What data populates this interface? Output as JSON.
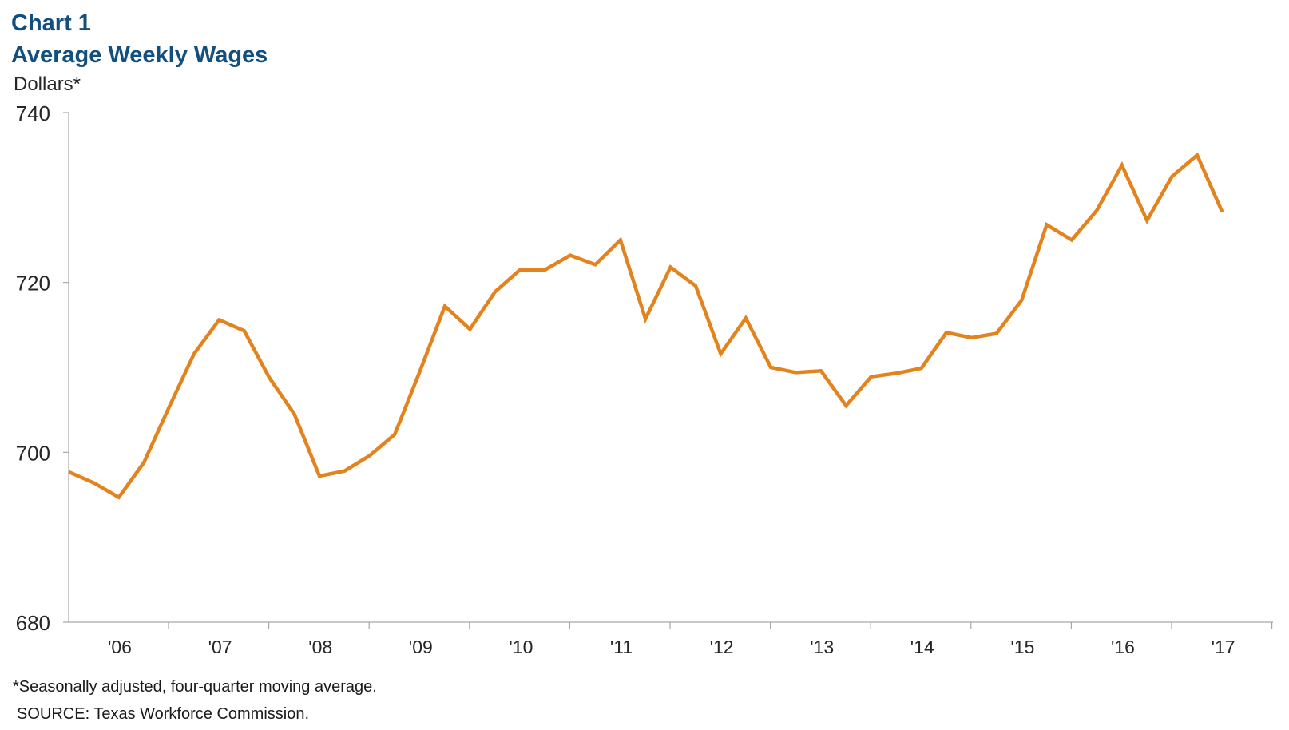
{
  "title_line1": "Chart 1",
  "title_line2": "Average Weekly Wages",
  "unit_label": "Dollars*",
  "footnote": "*Seasonally adjusted, four-quarter moving average.",
  "source": "SOURCE: Texas Workforce Commission.",
  "colors": {
    "title": "#134f7e",
    "line": "#e3831d",
    "axis": "#a6a6a6"
  },
  "chart_data": {
    "type": "line",
    "title": "Average Weekly Wages",
    "ylabel": "Dollars*",
    "ylim": [
      680,
      740
    ],
    "yticks": [
      680,
      700,
      720,
      740
    ],
    "xticks": [
      "'06",
      "'07",
      "'08",
      "'09",
      "'10",
      "'11",
      "'12",
      "'13",
      "'14",
      "'15",
      "'16",
      "'17"
    ],
    "grid": false,
    "series": [
      {
        "values": [
          697.7,
          696.4,
          694.7,
          698.8,
          705.3,
          711.6,
          715.6,
          714.3,
          708.8,
          704.5,
          697.2,
          697.8,
          699.6,
          702.1,
          709.5,
          717.2,
          714.5,
          718.9,
          721.5,
          721.5,
          723.2,
          722.1,
          725.0,
          715.7,
          721.8,
          719.6,
          711.6,
          715.8,
          710.0,
          709.4,
          709.6,
          705.5,
          708.9,
          709.3,
          709.9,
          714.1,
          713.5,
          714.0,
          717.9,
          726.8,
          725.0,
          728.5,
          733.8,
          727.3,
          732.5,
          735.0,
          728.3
        ]
      }
    ]
  }
}
